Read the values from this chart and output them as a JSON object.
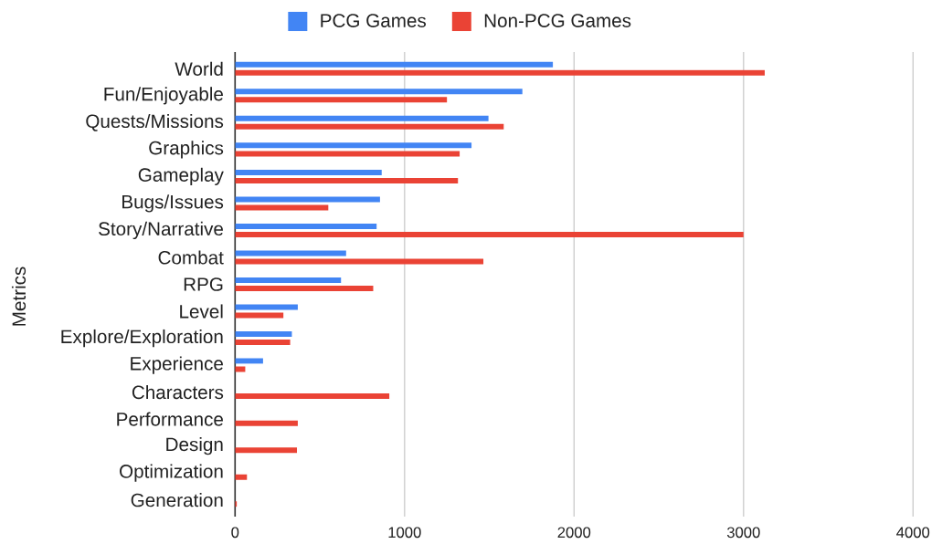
{
  "chart_data": {
    "type": "bar",
    "orientation": "horizontal",
    "ylabel": "Metrics",
    "categories": [
      "World",
      "Fun/Enjoyable",
      "Quests/Missions",
      "Graphics",
      "Gameplay",
      "Bugs/Issues",
      "Story/Narrative",
      "Combat",
      "RPG",
      "Level",
      "Explore/Exploration",
      "Experience",
      "Characters",
      "Performance",
      "Design",
      "Optimization",
      "Generation"
    ],
    "series": [
      {
        "name": "PCG Games",
        "color": "#4285f4",
        "values": [
          1875,
          1695,
          1495,
          1395,
          865,
          855,
          835,
          655,
          625,
          370,
          335,
          165,
          null,
          null,
          null,
          null,
          null
        ]
      },
      {
        "name": "Non-PCG Games",
        "color": "#ea4335",
        "values": [
          3125,
          1250,
          1585,
          1325,
          1315,
          550,
          3000,
          1465,
          815,
          285,
          325,
          60,
          910,
          370,
          365,
          70,
          10
        ]
      }
    ],
    "xlim": [
      0,
      4000
    ],
    "xticks": [
      0,
      1000,
      2000,
      3000,
      4000
    ],
    "grid": "x",
    "legend": "top"
  }
}
